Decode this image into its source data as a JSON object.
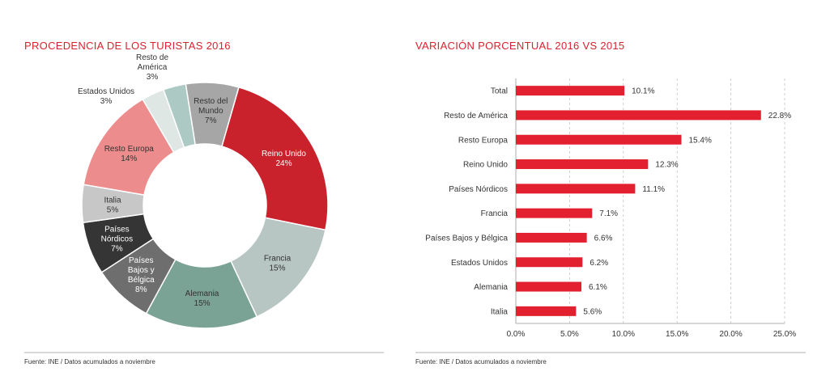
{
  "chart_data": [
    {
      "type": "pie",
      "variant": "donut",
      "title": "PROCEDENCIA DE LOS TURISTAS 2016",
      "source": "Fuente: INE / Datos acumulados a noviembre",
      "slices": [
        {
          "name": "Reino Unido",
          "value": 24,
          "label": "24%",
          "color": "#c9222c",
          "text_color": "#ffffff"
        },
        {
          "name": "Francia",
          "value": 15,
          "label": "15%",
          "color": "#b7c6c2",
          "text_color": "#333333"
        },
        {
          "name": "Alemania",
          "value": 15,
          "label": "15%",
          "color": "#7aa295",
          "text_color": "#333333"
        },
        {
          "name": "Países Bajos y Bélgica",
          "value": 8,
          "label": "8%",
          "color": "#6e6e6e",
          "text_color": "#ffffff"
        },
        {
          "name": "Países Nórdicos",
          "value": 7,
          "label": "7%",
          "color": "#353535",
          "text_color": "#ffffff"
        },
        {
          "name": "Italia",
          "value": 5,
          "label": "5%",
          "color": "#c7c7c7",
          "text_color": "#333333"
        },
        {
          "name": "Resto Europa",
          "value": 14,
          "label": "14%",
          "color": "#ec8c8c",
          "text_color": "#333333"
        },
        {
          "name": "Estados Unidos",
          "value": 3,
          "label": "3%",
          "color": "#dfe7e5",
          "text_color": "#333333"
        },
        {
          "name": "Resto de América",
          "value": 3,
          "label": "3%",
          "color": "#adc9c3",
          "text_color": "#333333"
        },
        {
          "name": "Resto del Mundo",
          "value": 7,
          "label": "7%",
          "color": "#a6a6a6",
          "text_color": "#333333"
        }
      ]
    },
    {
      "type": "bar",
      "orientation": "horizontal",
      "title": "VARIACIÓN PORCENTUAL 2016 VS 2015",
      "source": "Fuente: INE / Datos acumulados a noviembre",
      "categories": [
        "Total",
        "Resto de América",
        "Resto Europa",
        "Reino Unido",
        "Países Nórdicos",
        "Francia",
        "Países Bajos y Bélgica",
        "Estados Unidos",
        "Alemania",
        "Italia"
      ],
      "values": [
        10.1,
        22.8,
        15.4,
        12.3,
        11.1,
        7.1,
        6.6,
        6.2,
        6.1,
        5.6
      ],
      "value_labels": [
        "10.1%",
        "22.8%",
        "15.4%",
        "12.3%",
        "11.1%",
        "7.1%",
        "6.6%",
        "6.2%",
        "6.1%",
        "5.6%"
      ],
      "xlim": [
        0,
        25
      ],
      "xticks": [
        0,
        5,
        10,
        15,
        20,
        25
      ],
      "xtick_labels": [
        "0.0%",
        "5.0%",
        "10.0%",
        "15.0%",
        "20.0%",
        "25.0%"
      ],
      "bar_color": "#e3202f",
      "grid": true
    }
  ]
}
